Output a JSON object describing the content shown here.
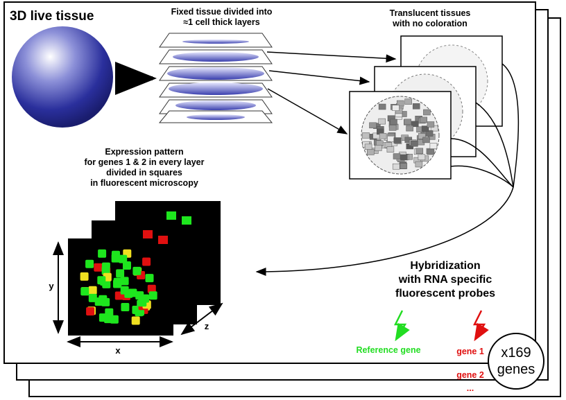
{
  "title": "3D live tissue",
  "labels": {
    "fixed_tissue": [
      "Fixed tissue divided into",
      "≈1 cell thick layers"
    ],
    "translucent": [
      "Translucent tissues",
      "with no coloration"
    ],
    "expression": [
      "Expression pattern",
      "for genes 1 & 2 in every layer",
      "divided in squares",
      "in fluorescent microscopy"
    ],
    "hybridization": [
      "Hybridization",
      "with RNA specific",
      "fluorescent probes"
    ],
    "reference_gene": "Reference gene",
    "gene1": "gene 1",
    "gene2": "gene 2",
    "ellipsis": "...",
    "counter_top": "x169",
    "counter_bottom": "genes",
    "axis_x": "x",
    "axis_y": "y",
    "axis_z": "z"
  },
  "colors": {
    "sphere": "#2a2f9c",
    "reference_probe": "#22dd22",
    "gene_probe": "#e01010"
  }
}
